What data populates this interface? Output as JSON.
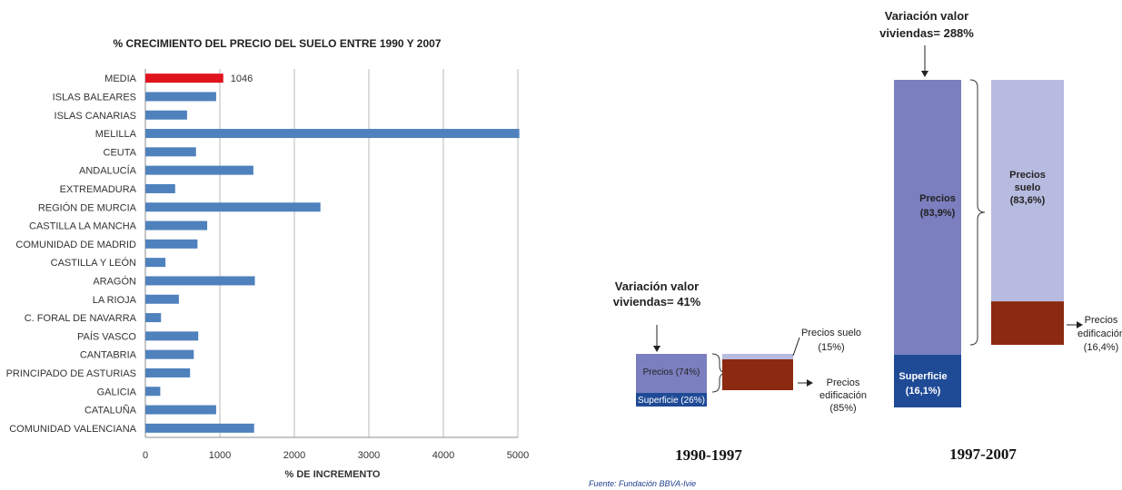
{
  "chart_data": [
    {
      "type": "bar",
      "orientation": "horizontal",
      "title": "% CRECIMIENTO DEL PRECIO DEL SUELO ENTRE 1990 Y 2007",
      "xlabel": "% DE INCREMENTO",
      "ylabel": "",
      "xlim": [
        0,
        5000
      ],
      "xticks": [
        "0",
        "1000",
        "2000",
        "3000",
        "4000",
        "5000"
      ],
      "grid": "vertical",
      "categories": [
        "MEDIA",
        "ISLAS BALEARES",
        "ISLAS CANARIAS",
        "MELILLA",
        "CEUTA",
        "ANDALUCÍA",
        "EXTREMADURA",
        "REGIÓN DE MURCIA",
        "CASTILLA LA MANCHA",
        "COMUNIDAD DE MADRID",
        "CASTILLA Y LEÓN",
        "ARAGÓN",
        "LA RIOJA",
        "C. FORAL DE NAVARRA",
        "PAÍS VASCO",
        "CANTABRIA",
        "PRINCIPADO DE ASTURIAS",
        "GALICIA",
        "CATALUÑA",
        "COMUNIDAD VALENCIANA"
      ],
      "values": [
        1046,
        950,
        560,
        5020,
        680,
        1450,
        400,
        2350,
        830,
        700,
        270,
        1470,
        450,
        210,
        710,
        650,
        600,
        200,
        950,
        1460
      ],
      "data_labels": [
        "1046"
      ],
      "colors": {
        "highlight": "#e0141e",
        "bars": "#4f81bd",
        "grid": "#b8b8b8",
        "axis": "#8c8c8c"
      }
    },
    {
      "type": "stacked-bar",
      "title": "",
      "categories": [
        "1990-1997",
        "1997-2007"
      ],
      "panels": [
        {
          "label": "1990-1997",
          "headline": [
            "Variación valor",
            "viviendas= 41%"
          ],
          "left_stack": [
            {
              "name": "Precios",
              "value": 74,
              "label": "Precios (74%)"
            },
            {
              "name": "Superficie",
              "value": 26,
              "label": "Superficie (26%)"
            }
          ],
          "right_stack": [
            {
              "name": "Precios suelo",
              "value": 15,
              "label": [
                "Precios suelo",
                "(15%)"
              ]
            },
            {
              "name": "Precios edificación",
              "value": 85,
              "label": [
                "Precios",
                "edificación",
                "(85%)"
              ]
            }
          ]
        },
        {
          "label": "1997-2007",
          "headline": [
            "Variación valor",
            "viviendas= 288%"
          ],
          "left_stack": [
            {
              "name": "Precios",
              "value": 83.9,
              "label": [
                "Precios",
                "(83,9%)"
              ]
            },
            {
              "name": "Superficie",
              "value": 16.1,
              "label": [
                "Superficie",
                "(16,1%)"
              ]
            }
          ],
          "right_stack": [
            {
              "name": "Precios suelo",
              "value": 83.6,
              "label": [
                "Precios",
                "suelo",
                "(83,6%)"
              ]
            },
            {
              "name": "Precios edificación",
              "value": 16.4,
              "label": [
                "Precios",
                "edificación",
                "(16,4%)"
              ]
            }
          ]
        }
      ],
      "colors": {
        "precios": "#7b7fbf",
        "superficie": "#1f4a96",
        "suelo": "#b8bbe0",
        "edificacion": "#8b2a10"
      }
    }
  ],
  "source": "Fuente: Fundación BBVA-Ivie"
}
